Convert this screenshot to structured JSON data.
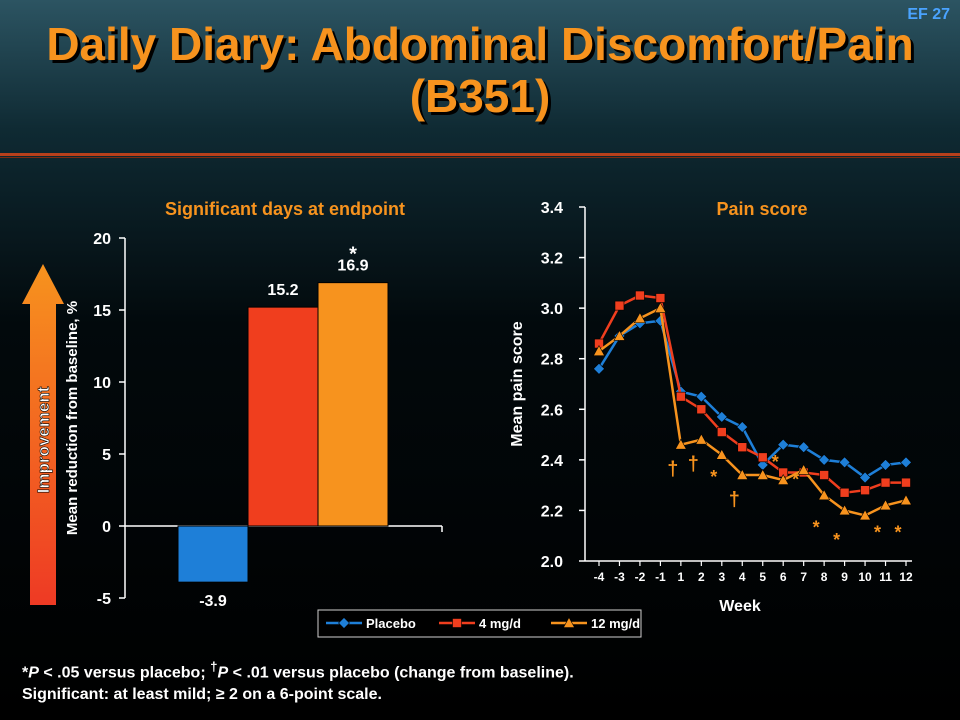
{
  "slide_id": "EF 27",
  "title_line1": "Daily Diary: Abdominal Discomfort/Pain",
  "title_line2": "(B351)",
  "improvement_label": "Improvement",
  "footnote_line1_parts": [
    "*",
    "P",
    " < .05 versus placebo; ",
    "†",
    "P",
    " < .01 versus placebo (change from baseline)."
  ],
  "footnote_line2": "Significant: at least mild; ≥ 2 on a 6-point scale.",
  "colors": {
    "placebo": "#1e7fd8",
    "mg4": "#f03e1e",
    "mg12": "#f7931e",
    "accent": "#f7931e"
  },
  "chart_data": [
    {
      "type": "bar",
      "title": "Significant days at endpoint",
      "ylabel": "Mean reduction from baseline, %",
      "ylim": [
        -5,
        20
      ],
      "yticks": [
        "-5",
        "0",
        "5",
        "10",
        "15",
        "20"
      ],
      "categories": [
        "Placebo",
        "4 mg/d",
        "12 mg/d"
      ],
      "values": [
        -3.9,
        15.2,
        16.9
      ],
      "value_labels": [
        "-3.9",
        "15.2",
        "16.9"
      ],
      "significance": [
        "",
        "",
        "*"
      ]
    },
    {
      "type": "line",
      "title": "Pain score",
      "xlabel": "Week",
      "ylabel": "Mean pain score",
      "ylim": [
        2.0,
        3.4
      ],
      "yticks": [
        "2.0",
        "2.2",
        "2.4",
        "2.6",
        "2.8",
        "3.0",
        "3.2",
        "3.4"
      ],
      "x": [
        -4,
        -3,
        -2,
        -1,
        1,
        2,
        3,
        4,
        5,
        6,
        7,
        8,
        9,
        10,
        11,
        12
      ],
      "xticks": [
        "-4",
        "-3",
        "-2",
        "-1",
        "1",
        "2",
        "3",
        "4",
        "5",
        "6",
        "7",
        "8",
        "9",
        "10",
        "11",
        "12"
      ],
      "series": [
        {
          "name": "Placebo",
          "marker": "diamond",
          "values": [
            2.76,
            2.89,
            2.94,
            2.95,
            2.67,
            2.65,
            2.57,
            2.53,
            2.38,
            2.46,
            2.45,
            2.4,
            2.39,
            2.33,
            2.38,
            2.39
          ]
        },
        {
          "name": "4 mg/d",
          "marker": "square",
          "values": [
            2.86,
            3.01,
            3.05,
            3.04,
            2.65,
            2.6,
            2.51,
            2.45,
            2.41,
            2.35,
            2.35,
            2.34,
            2.27,
            2.28,
            2.31,
            2.31
          ]
        },
        {
          "name": "12 mg/d",
          "marker": "triangle",
          "values": [
            2.83,
            2.89,
            2.96,
            3.0,
            2.46,
            2.48,
            2.42,
            2.34,
            2.34,
            2.32,
            2.36,
            2.26,
            2.2,
            2.18,
            2.22,
            2.24
          ]
        }
      ],
      "annotations": [
        {
          "text": "†",
          "x": 1,
          "y": 2.37
        },
        {
          "text": "†",
          "x": 2,
          "y": 2.39
        },
        {
          "text": "*",
          "x": 3,
          "y": 2.34
        },
        {
          "text": "†",
          "x": 4,
          "y": 2.25
        },
        {
          "text": "*",
          "x": 6,
          "y": 2.4
        },
        {
          "text": "*",
          "x": 7,
          "y": 2.33
        },
        {
          "text": "*",
          "x": 8,
          "y": 2.14
        },
        {
          "text": "*",
          "x": 9,
          "y": 2.09
        },
        {
          "text": "*",
          "x": 11,
          "y": 2.12
        },
        {
          "text": "*",
          "x": 12,
          "y": 2.12
        }
      ]
    }
  ]
}
